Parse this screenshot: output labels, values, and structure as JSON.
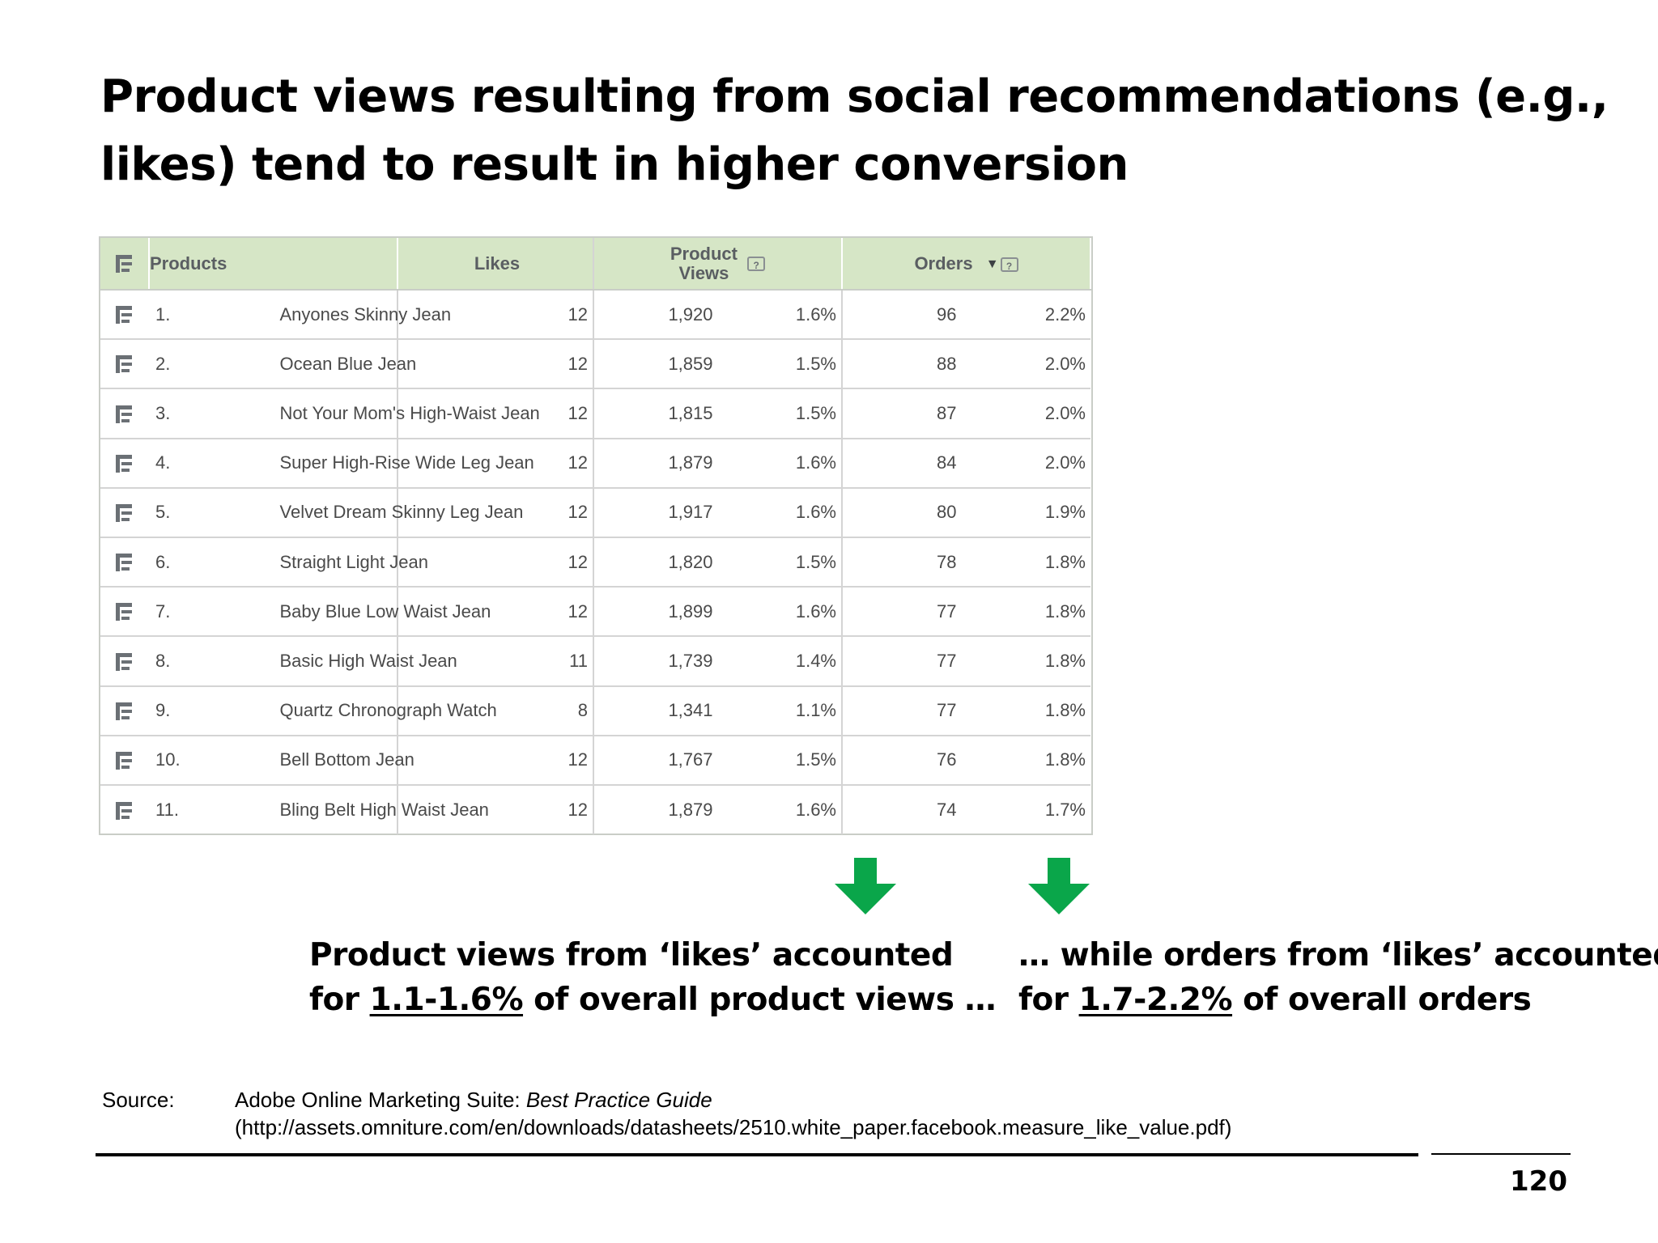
{
  "slide": {
    "title_line1": "Product views resulting from social recommendations (e.g.,",
    "title_line2": "likes) tend to result in higher conversion",
    "page_number": "120"
  },
  "table": {
    "headers": {
      "products": "Products",
      "likes": "Likes",
      "product_views_line1": "Product",
      "product_views_line2": "Views",
      "orders": "Orders",
      "help_icon": "?"
    },
    "rows": [
      {
        "num": "1.",
        "name": "Anyones Skinny Jean",
        "likes": "12",
        "views": "1,920",
        "views_pct": "1.6%",
        "orders": "96",
        "orders_pct": "2.2%"
      },
      {
        "num": "2.",
        "name": "Ocean Blue Jean",
        "likes": "12",
        "views": "1,859",
        "views_pct": "1.5%",
        "orders": "88",
        "orders_pct": "2.0%"
      },
      {
        "num": "3.",
        "name": "Not Your Mom's High-Waist Jean",
        "likes": "12",
        "views": "1,815",
        "views_pct": "1.5%",
        "orders": "87",
        "orders_pct": "2.0%"
      },
      {
        "num": "4.",
        "name": "Super High-Rise Wide Leg Jean",
        "likes": "12",
        "views": "1,879",
        "views_pct": "1.6%",
        "orders": "84",
        "orders_pct": "2.0%"
      },
      {
        "num": "5.",
        "name": "Velvet Dream Skinny Leg Jean",
        "likes": "12",
        "views": "1,917",
        "views_pct": "1.6%",
        "orders": "80",
        "orders_pct": "1.9%"
      },
      {
        "num": "6.",
        "name": "Straight Light Jean",
        "likes": "12",
        "views": "1,820",
        "views_pct": "1.5%",
        "orders": "78",
        "orders_pct": "1.8%"
      },
      {
        "num": "7.",
        "name": "Baby Blue Low Waist Jean",
        "likes": "12",
        "views": "1,899",
        "views_pct": "1.6%",
        "orders": "77",
        "orders_pct": "1.8%"
      },
      {
        "num": "8.",
        "name": "Basic High Waist Jean",
        "likes": "11",
        "views": "1,739",
        "views_pct": "1.4%",
        "orders": "77",
        "orders_pct": "1.8%"
      },
      {
        "num": "9.",
        "name": "Quartz Chronograph Watch",
        "likes": "8",
        "views": "1,341",
        "views_pct": "1.1%",
        "orders": "77",
        "orders_pct": "1.8%"
      },
      {
        "num": "10.",
        "name": "Bell Bottom Jean",
        "likes": "12",
        "views": "1,767",
        "views_pct": "1.5%",
        "orders": "76",
        "orders_pct": "1.8%"
      },
      {
        "num": "11.",
        "name": "Bling Belt High Waist Jean",
        "likes": "12",
        "views": "1,879",
        "views_pct": "1.6%",
        "orders": "74",
        "orders_pct": "1.7%"
      }
    ]
  },
  "callouts": {
    "views": {
      "line1": "Product views from ‘likes’ accounted",
      "line2_prefix": "for ",
      "line2_highlight": "1.1-1.6%",
      "line2_suffix": " of overall product views …"
    },
    "orders": {
      "line1": "… while orders from ‘likes’ accounted",
      "line2_prefix": "for ",
      "line2_highlight": "1.7-2.2%",
      "line2_suffix": " of overall orders"
    }
  },
  "source": {
    "label": "Source:",
    "line1_prefix": "Adobe Online Marketing Suite: ",
    "line1_italic": "Best Practice Guide",
    "line2": "(http://assets.omniture.com/en/downloads/datasheets/2510.white_paper.facebook.measure_like_value.pdf)"
  },
  "icons": {
    "row_icon": "breakdown-tree-icon",
    "header_icon": "breakdown-tree-icon",
    "help": "help-icon",
    "sort": "sort-descending-icon",
    "arrows": "down-arrow-icon"
  },
  "colors": {
    "table_header": "#d6e6c6",
    "arrow_green": "#0aa64a"
  }
}
